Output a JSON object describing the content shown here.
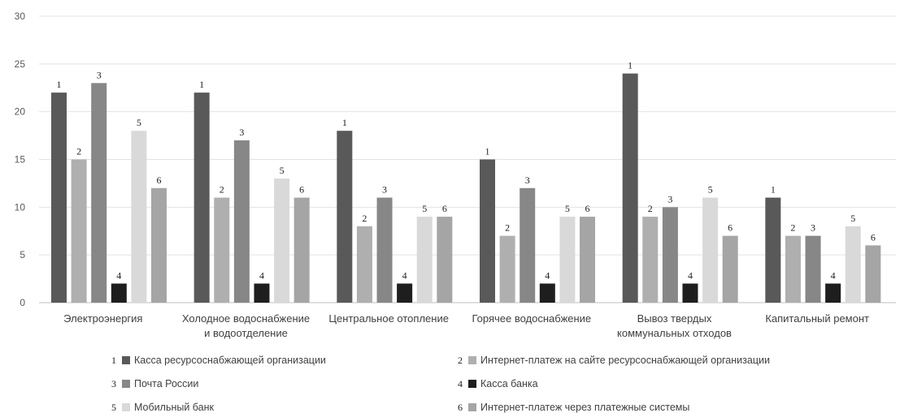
{
  "chart_data": {
    "type": "bar",
    "categories": [
      [
        "Электроэнергия"
      ],
      [
        "Холодное водоснабжение",
        "и водоотделение"
      ],
      [
        "Центральное отопление"
      ],
      [
        "Горячее водоснабжение"
      ],
      [
        "Вывоз твердых",
        "коммунальных отходов"
      ],
      [
        "Капитальный ремонт"
      ]
    ],
    "series": [
      {
        "name": "Касса ресурсоснабжающей организации",
        "number": "1",
        "color": "#595959",
        "values": [
          22,
          22,
          18,
          15,
          24,
          11
        ]
      },
      {
        "name": "Интернет-платеж на сайте ресурсоснабжающей организации",
        "number": "2",
        "color": "#afafaf",
        "values": [
          15,
          11,
          8,
          7,
          9,
          7
        ]
      },
      {
        "name": "Почта России",
        "number": "3",
        "color": "#878787",
        "values": [
          23,
          17,
          11,
          12,
          10,
          7
        ]
      },
      {
        "name": "Касса банка",
        "number": "4",
        "color": "#1e1e1e",
        "values": [
          2,
          2,
          2,
          2,
          2,
          2
        ]
      },
      {
        "name": "Мобильный банк",
        "number": "5",
        "color": "#d9d9d9",
        "values": [
          18,
          13,
          9,
          9,
          11,
          8
        ]
      },
      {
        "name": "Интернет-платеж через платежные системы",
        "number": "6",
        "color": "#a5a5a5",
        "values": [
          12,
          11,
          9,
          9,
          7,
          6
        ]
      }
    ],
    "ylim": [
      0,
      30
    ],
    "yticks": [
      0,
      5,
      10,
      15,
      20,
      25,
      30
    ],
    "grid": true,
    "legend_position": "bottom",
    "data_labels": "series numbers above bars"
  }
}
